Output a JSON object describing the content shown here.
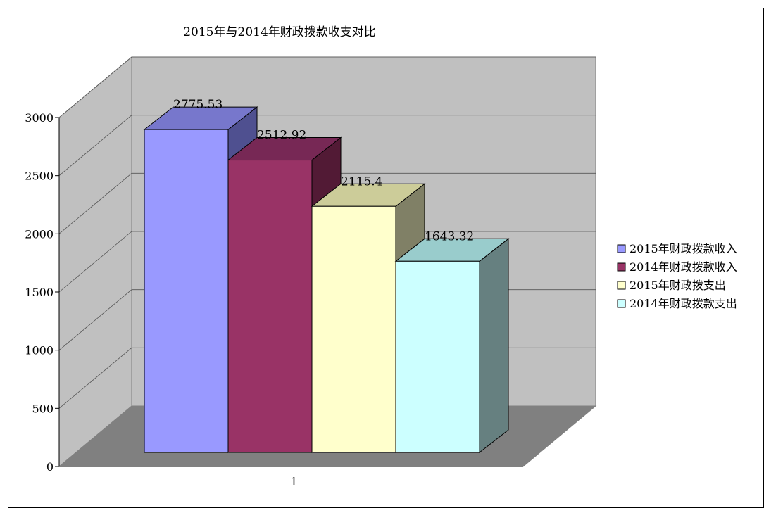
{
  "chart_data": {
    "type": "bar",
    "title": "2015年与2014年财政拨款收支对比",
    "categories": [
      "1"
    ],
    "ylim": [
      0,
      3000
    ],
    "yticks": [
      "0",
      "500",
      "1000",
      "1500",
      "2000",
      "2500",
      "3000"
    ],
    "grid": true,
    "legend_position": "right",
    "series": [
      {
        "name": "2015年财政拨款收入",
        "values": [
          2775.53
        ],
        "label": "2775.53",
        "color": "#9999ff",
        "dark": "#4f5090",
        "top": "#7777cc"
      },
      {
        "name": "2014年财政拨款收入",
        "values": [
          2512.92
        ],
        "label": "2512.92",
        "color": "#993366",
        "dark": "#521a35",
        "top": "#772855"
      },
      {
        "name": "2015年财政拨支出",
        "values": [
          2115.4
        ],
        "label": "2115.4",
        "color": "#ffffcc",
        "dark": "#808066",
        "top": "#cccc99"
      },
      {
        "name": "2014年财政拨款支出",
        "values": [
          1643.32
        ],
        "label": "1643.32",
        "color": "#ccffff",
        "dark": "#668080",
        "top": "#99cccc"
      }
    ],
    "colors": {
      "back_wall": "#c0c0c0",
      "side_wall": "#c0c0c0",
      "floor": "#808080",
      "grid": "#555555"
    }
  }
}
